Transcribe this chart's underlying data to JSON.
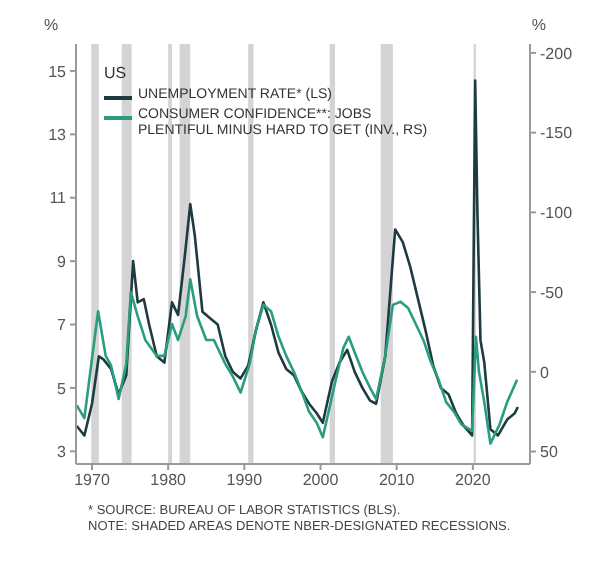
{
  "chart_data": {
    "type": "line",
    "title": "US",
    "ylabel": "%",
    "y2label": "%",
    "series": [
      {
        "name": "UNEMPLOYMENT RATE* (LS)",
        "color": "#1d3b40",
        "x": [
          1968,
          1969,
          1970,
          1970.9,
          1971.5,
          1972.5,
          1973.5,
          1974.5,
          1975.4,
          1976,
          1976.8,
          1977.5,
          1978.5,
          1979.5,
          1980.5,
          1981.3,
          1982.2,
          1982.9,
          1983.5,
          1984.5,
          1985.5,
          1986.5,
          1987.5,
          1988.5,
          1989.5,
          1990.5,
          1991.5,
          1992.5,
          1993.5,
          1994.5,
          1995.5,
          1996.5,
          1997.5,
          1998.5,
          1999.5,
          2000.3,
          2001.5,
          2002.5,
          2003.5,
          2004.5,
          2005.5,
          2006.5,
          2007.3,
          2008.5,
          2009.8,
          2010.8,
          2011.8,
          2012.8,
          2013.8,
          2014.8,
          2015.8,
          2016.8,
          2017.8,
          2018.8,
          2019.9,
          2020.3,
          2020.6,
          2021,
          2021.5,
          2022.3,
          2023.3,
          2024.5,
          2025.5,
          2025.9
        ],
        "values": [
          3.8,
          3.5,
          4.5,
          6.0,
          5.9,
          5.6,
          4.8,
          5.4,
          9.0,
          7.7,
          7.8,
          7.0,
          6.0,
          5.8,
          7.7,
          7.3,
          9.2,
          10.8,
          9.8,
          7.4,
          7.2,
          7.0,
          6.0,
          5.5,
          5.3,
          5.7,
          6.8,
          7.7,
          7.0,
          6.1,
          5.6,
          5.4,
          4.9,
          4.5,
          4.2,
          3.9,
          5.2,
          5.8,
          6.2,
          5.5,
          5.0,
          4.6,
          4.5,
          6.0,
          10.0,
          9.6,
          8.8,
          7.8,
          6.8,
          5.7,
          5.0,
          4.8,
          4.2,
          3.8,
          3.5,
          14.7,
          10.5,
          6.5,
          5.8,
          3.7,
          3.5,
          4.0,
          4.2,
          4.4
        ]
      },
      {
        "name": "CONSUMER CONFIDENCE**: JOBS PLENTIFUL MINUS HARD TO GET (INV., RS)",
        "color": "#2a9d7e",
        "axis": "y2",
        "x": [
          1968,
          1969,
          1970.8,
          1971.8,
          1972.5,
          1973.5,
          1974.5,
          1975.1,
          1976,
          1977,
          1978.5,
          1979.5,
          1980.5,
          1981.3,
          1982.3,
          1982.9,
          1983.8,
          1985,
          1986,
          1987.5,
          1988.5,
          1989.5,
          1990.7,
          1991.5,
          1992.5,
          1993.5,
          1994.5,
          1995.5,
          1996.5,
          1997.5,
          1998.5,
          1999.5,
          2000.3,
          2001.3,
          2002,
          2003,
          2003.7,
          2004.5,
          2005.5,
          2006.5,
          2007.3,
          2008.5,
          2009.5,
          2010.5,
          2011.5,
          2012.5,
          2013.5,
          2014.5,
          2015.5,
          2016.5,
          2017.5,
          2018.5,
          2019.9,
          2020.4,
          2020.8,
          2021.5,
          2022.3,
          2023.5,
          2024.5,
          2025.8
        ],
        "values": [
          21,
          29,
          -38,
          -10,
          -4,
          17,
          -5,
          -50,
          -35,
          -20,
          -10,
          -10,
          -30,
          -20,
          -35,
          -58,
          -35,
          -20,
          -20,
          -5,
          3,
          13,
          -5,
          -26,
          -42,
          -38,
          -22,
          -10,
          0,
          12,
          25,
          32,
          41,
          20,
          5,
          -15,
          -22,
          -12,
          0,
          10,
          17,
          -10,
          -42,
          -44,
          -40,
          -30,
          -20,
          -6,
          5,
          19,
          25,
          33,
          37,
          -22,
          0,
          19,
          45,
          33,
          19,
          5
        ]
      }
    ],
    "xlim": [
      1967.9,
      2027.5
    ],
    "xticks": [
      1970,
      1980,
      1990,
      2000,
      2010,
      2020
    ],
    "ylim": [
      2.6,
      15.85
    ],
    "yticks": [
      3,
      5,
      7,
      9,
      11,
      13,
      15
    ],
    "y2lim": [
      57.8,
      -205.6
    ],
    "y2ticks": [
      -200,
      -150,
      -100,
      -50,
      0,
      50
    ],
    "bands": [
      {
        "axis": "x",
        "from": 1969.9,
        "to": 1970.9,
        "color": "#d4d4d4"
      },
      {
        "axis": "x",
        "from": 1973.9,
        "to": 1975.2,
        "color": "#d4d4d4"
      },
      {
        "axis": "x",
        "from": 1980.0,
        "to": 1980.5,
        "color": "#d4d4d4"
      },
      {
        "axis": "x",
        "from": 1981.5,
        "to": 1982.9,
        "color": "#d4d4d4"
      },
      {
        "axis": "x",
        "from": 1990.5,
        "to": 1991.2,
        "color": "#d4d4d4"
      },
      {
        "axis": "x",
        "from": 2001.2,
        "to": 2001.9,
        "color": "#d4d4d4"
      },
      {
        "axis": "x",
        "from": 2007.9,
        "to": 2009.5,
        "color": "#d4d4d4"
      },
      {
        "axis": "x",
        "from": 2020.1,
        "to": 2020.4,
        "color": "#d4d4d4"
      }
    ],
    "annotations": [
      "* SOURCE: BUREAU OF LABOR STATISTICS (BLS).",
      "NOTE: SHADED AREAS DENOTE NBER-DESIGNATED RECESSIONS."
    ],
    "legend": "top left",
    "marker": "none",
    "line_style": "solid"
  }
}
